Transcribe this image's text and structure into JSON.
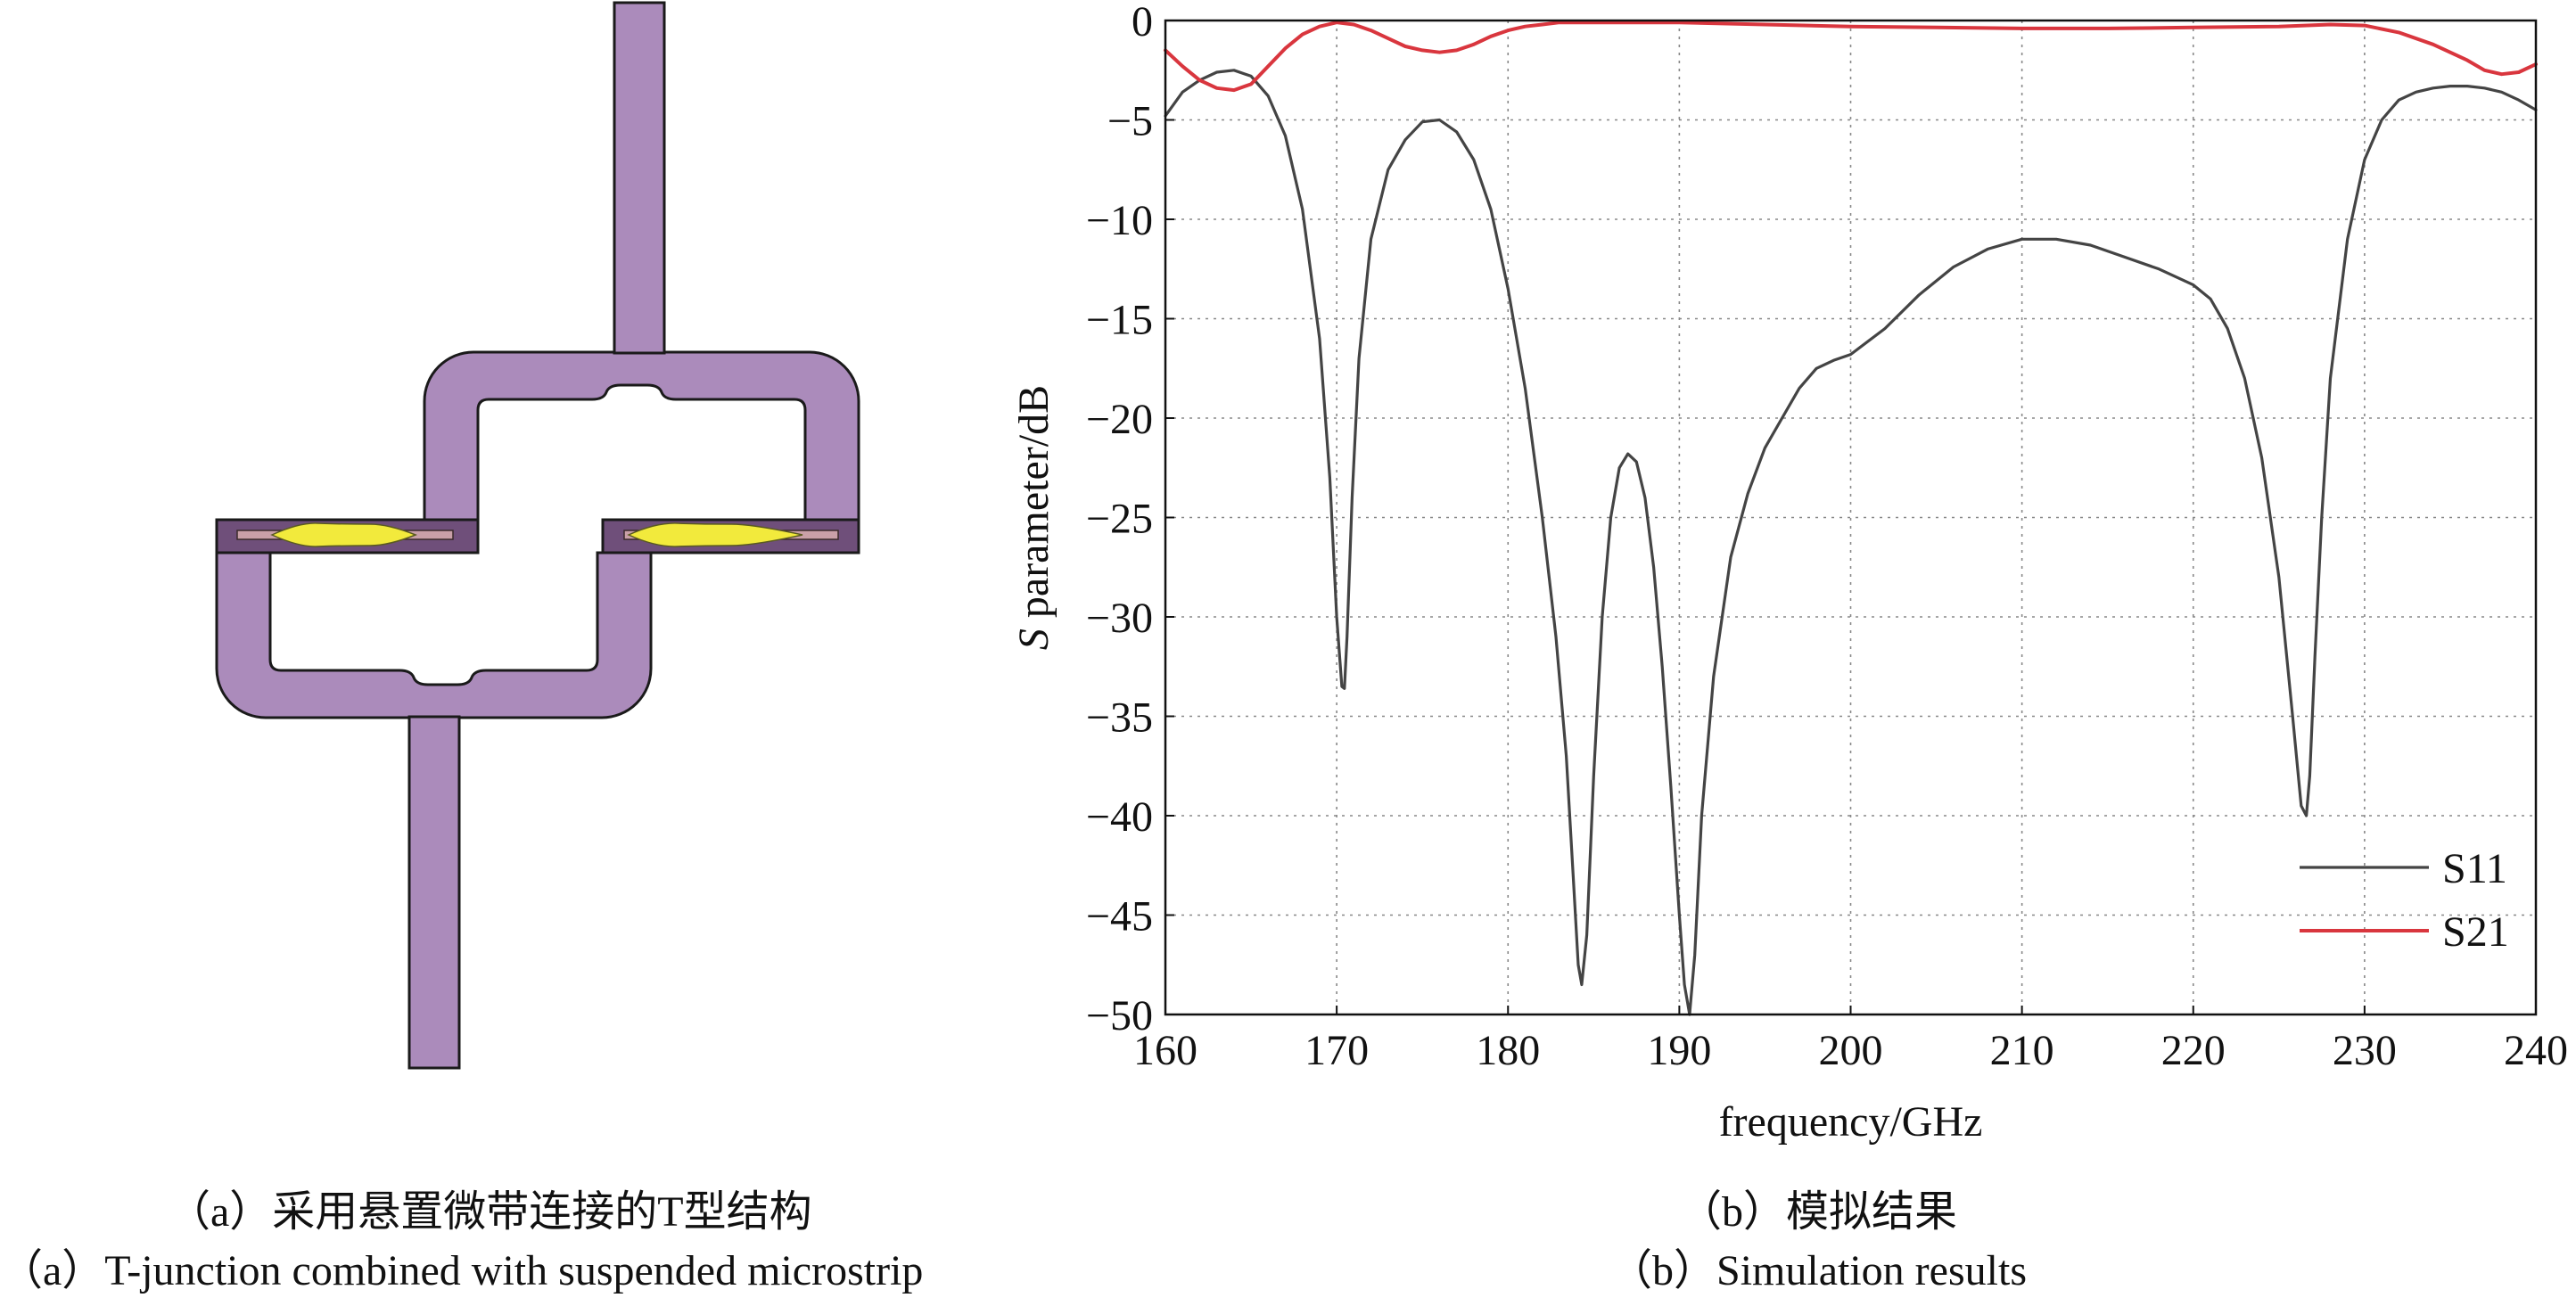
{
  "figure": {
    "colors": {
      "metal": "#AB8BBB",
      "metal_stroke": "#1a1a1a",
      "port": "#6F4F7A",
      "microstrip": "#F2EA3C",
      "s11": "#444444",
      "s21": "#D9363E",
      "grid": "#888888"
    }
  },
  "captions": {
    "a_cn": "（a）采用悬置微带连接的T型结构",
    "a_en": "（a）T-junction combined with suspended microstrip",
    "b_cn": "（b）模拟结果",
    "b_en": "（b）Simulation results"
  },
  "chart_data": {
    "type": "line",
    "title": "",
    "xlabel": "frequency/GHz",
    "ylabel_italic": "S",
    "ylabel_rest": " parameter/dB",
    "xlim": [
      160,
      240
    ],
    "ylim": [
      -50,
      0
    ],
    "xticks": [
      160,
      170,
      180,
      190,
      200,
      210,
      220,
      230,
      240
    ],
    "yticks": [
      0,
      -5,
      -10,
      -15,
      -20,
      -25,
      -30,
      -35,
      -40,
      -45,
      -50
    ],
    "grid": true,
    "legend_position": "bottom-right",
    "series": [
      {
        "name": "S11",
        "color": "#444444",
        "x": [
          160,
          161,
          162,
          163,
          164,
          165,
          166,
          167,
          168,
          169,
          169.6,
          170,
          170.3,
          170.45,
          170.6,
          170.9,
          171.3,
          172,
          173,
          174,
          175,
          176,
          177,
          178,
          179,
          180,
          181,
          182,
          182.8,
          183.4,
          183.8,
          184.1,
          184.3,
          184.6,
          185,
          185.5,
          186,
          186.5,
          187,
          187.5,
          188,
          188.5,
          189,
          189.5,
          190,
          190.3,
          190.6,
          190.9,
          191.3,
          192,
          193,
          194,
          195,
          196,
          197,
          198,
          199,
          200,
          202,
          204,
          206,
          208,
          210,
          212,
          214,
          216,
          218,
          220,
          221,
          222,
          223,
          224,
          225,
          225.8,
          226.3,
          226.6,
          226.8,
          227.1,
          227.5,
          228,
          229,
          230,
          231,
          232,
          233,
          234,
          235,
          236,
          237,
          238,
          239,
          240
        ],
        "y": [
          -4.8,
          -3.6,
          -3.0,
          -2.6,
          -2.5,
          -2.8,
          -3.8,
          -5.8,
          -9.5,
          -16,
          -23,
          -30,
          -33.5,
          -33.6,
          -31,
          -24,
          -17,
          -11,
          -7.5,
          -6.0,
          -5.1,
          -5.0,
          -5.6,
          -7.0,
          -9.5,
          -13.5,
          -18.5,
          -25,
          -31,
          -37,
          -43,
          -47.5,
          -48.5,
          -46,
          -38,
          -30,
          -25,
          -22.5,
          -21.8,
          -22.2,
          -24,
          -27.5,
          -32.5,
          -38.5,
          -45,
          -48.5,
          -50,
          -47,
          -40,
          -33,
          -27,
          -23.8,
          -21.5,
          -20,
          -18.5,
          -17.5,
          -17.1,
          -16.8,
          -15.5,
          -13.8,
          -12.4,
          -11.5,
          -11.0,
          -11.0,
          -11.3,
          -11.9,
          -12.5,
          -13.3,
          -14.0,
          -15.5,
          -18.0,
          -22,
          -28,
          -35,
          -39.5,
          -40.0,
          -38,
          -32,
          -25,
          -18,
          -11,
          -7.0,
          -5.0,
          -4.0,
          -3.6,
          -3.4,
          -3.3,
          -3.3,
          -3.4,
          -3.6,
          -4.0,
          -4.5
        ]
      },
      {
        "name": "S21",
        "color": "#D9363E",
        "x": [
          160,
          161,
          162,
          163,
          164,
          165,
          166,
          167,
          168,
          169,
          170,
          171,
          172,
          173,
          174,
          175,
          176,
          177,
          178,
          179,
          180,
          181,
          182,
          183,
          185,
          190,
          195,
          200,
          205,
          210,
          212,
          215,
          220,
          225,
          228,
          230,
          232,
          234,
          236,
          237,
          238,
          239,
          240
        ],
        "y": [
          -1.5,
          -2.3,
          -3.0,
          -3.4,
          -3.5,
          -3.2,
          -2.3,
          -1.4,
          -0.7,
          -0.3,
          -0.1,
          -0.2,
          -0.5,
          -0.9,
          -1.3,
          -1.5,
          -1.6,
          -1.5,
          -1.2,
          -0.8,
          -0.5,
          -0.3,
          -0.2,
          -0.1,
          -0.1,
          -0.1,
          -0.2,
          -0.3,
          -0.35,
          -0.4,
          -0.4,
          -0.4,
          -0.35,
          -0.3,
          -0.2,
          -0.25,
          -0.6,
          -1.2,
          -2.0,
          -2.5,
          -2.7,
          -2.6,
          -2.2
        ]
      }
    ]
  }
}
